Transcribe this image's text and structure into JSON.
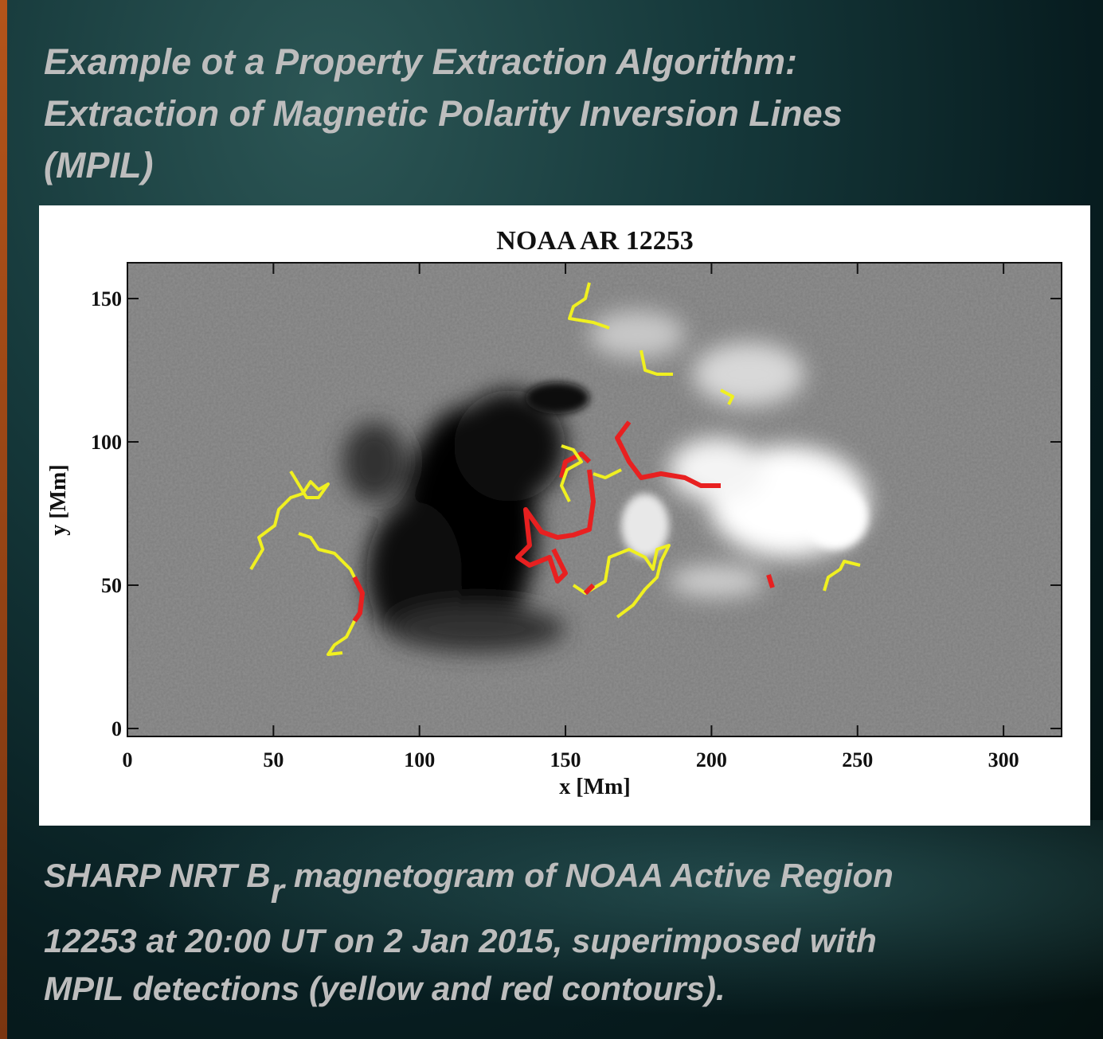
{
  "title": [
    "Example ot a Property Extraction Algorithm:",
    "Extraction of Magnetic Polarity Inversion Lines",
    "(MPIL)"
  ],
  "figure": {
    "title": "NOAA AR 12253",
    "x_label": "x [Mm]",
    "y_label": "y [Mm]",
    "x_ticks": [
      0,
      50,
      100,
      150,
      200,
      250,
      300
    ],
    "y_ticks": [
      0,
      50,
      100,
      150
    ]
  },
  "caption": {
    "line1_prefix": "SHARP NRT B",
    "line1_subscript": "r",
    "line1_suffix": "magnetogram of NOAA Active Region",
    "line2": "12253 at 20:00 UT on 2 Jan 2015, superimposed with",
    "line3": "MPIL detections (yellow and red contours)."
  }
}
